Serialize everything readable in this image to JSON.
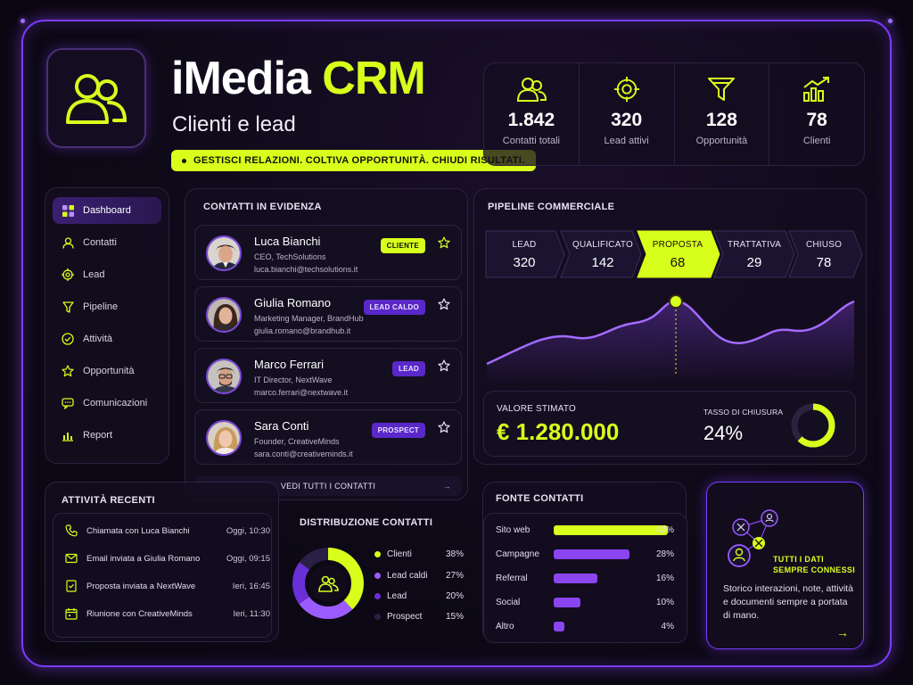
{
  "app": {
    "title_part1": "iMedia",
    "title_part2": "CRM",
    "subtitle": "Clienti e lead",
    "tagline": "GESTISCI RELAZIONI. COLTIVA OPPORTUNITÀ. CHIUDI RISULTATI."
  },
  "stats": [
    {
      "icon": "users-icon",
      "value": "1.842",
      "label": "Contatti totali"
    },
    {
      "icon": "target-icon",
      "value": "320",
      "label": "Lead attivi"
    },
    {
      "icon": "funnel-icon",
      "value": "128",
      "label": "Opportunità"
    },
    {
      "icon": "growth-chart-icon",
      "value": "78",
      "label": "Clienti"
    }
  ],
  "sidebar": {
    "items": [
      {
        "label": "Dashboard",
        "icon": "grid-icon",
        "active": true
      },
      {
        "label": "Contatti",
        "icon": "user-icon"
      },
      {
        "label": "Lead",
        "icon": "target-icon"
      },
      {
        "label": "Pipeline",
        "icon": "funnel-icon"
      },
      {
        "label": "Attività",
        "icon": "check-circle-icon"
      },
      {
        "label": "Opportunità",
        "icon": "star-icon"
      },
      {
        "label": "Comunicazioni",
        "icon": "chat-icon"
      },
      {
        "label": "Report",
        "icon": "bar-chart-icon"
      }
    ]
  },
  "contacts": {
    "title": "CONTATTI IN EVIDENZA",
    "items": [
      {
        "name": "Luca Bianchi",
        "role": "CEO, TechSolutions",
        "email": "luca.bianchi@techsolutions.it",
        "badge": "CLIENTE",
        "badge_style": "lime"
      },
      {
        "name": "Giulia Romano",
        "role": "Marketing Manager, BrandHub",
        "email": "giulia.romano@brandhub.it",
        "badge": "LEAD CALDO",
        "badge_style": "vio"
      },
      {
        "name": "Marco Ferrari",
        "role": "IT Director, NextWave",
        "email": "marco.ferrari@nextwave.it",
        "badge": "LEAD",
        "badge_style": "vio"
      },
      {
        "name": "Sara Conti",
        "role": "Founder, CreativeMinds",
        "email": "sara.conti@creativeminds.it",
        "badge": "PROSPECT",
        "badge_style": "vio"
      }
    ],
    "see_all": "VEDI TUTTI I CONTATTI"
  },
  "pipeline": {
    "title": "PIPELINE COMMERCIALE",
    "stages": [
      {
        "name": "LEAD",
        "value": "320"
      },
      {
        "name": "QUALIFICATO",
        "value": "142"
      },
      {
        "name": "PROPOSTA",
        "value": "68",
        "active": true
      },
      {
        "name": "TRATTATIVA",
        "value": "29"
      },
      {
        "name": "CHIUSO",
        "value": "78"
      }
    ],
    "estimated_label": "VALORE STIMATO",
    "estimated_value": "€ 1.280.000",
    "close_rate_label": "TASSO DI CHIUSURA",
    "close_rate_value": "24%",
    "close_rate_fraction": 0.24
  },
  "activities": {
    "title": "ATTIVITÀ RECENTI",
    "items": [
      {
        "icon": "phone-icon",
        "text": "Chiamata con Luca Bianchi",
        "time": "Oggi, 10:30"
      },
      {
        "icon": "mail-icon",
        "text": "Email inviata a Giulia Romano",
        "time": "Oggi, 09:15"
      },
      {
        "icon": "document-icon",
        "text": "Proposta inviata a NextWave",
        "time": "Ieri, 16:45"
      },
      {
        "icon": "calendar-icon",
        "text": "Riunione con CreativeMinds",
        "time": "Ieri, 11:30"
      }
    ]
  },
  "distribution": {
    "title": "DISTRIBUZIONE CONTATTI",
    "items": [
      {
        "label": "Clienti",
        "pct": "38%",
        "value": 38,
        "color": "#d8ff1c"
      },
      {
        "label": "Lead caldi",
        "pct": "27%",
        "value": 27,
        "color": "#9b5cff"
      },
      {
        "label": "Lead",
        "pct": "20%",
        "value": 20,
        "color": "#6a2fd6"
      },
      {
        "label": "Prospect",
        "pct": "15%",
        "value": 15,
        "color": "#2a1f45"
      }
    ]
  },
  "sources": {
    "title": "FONTE CONTATTI",
    "items": [
      {
        "label": "Sito web",
        "pct": "42%",
        "value": 42,
        "color": "#d8ff1c"
      },
      {
        "label": "Campagne",
        "pct": "28%",
        "value": 28,
        "color": "#8a45f0"
      },
      {
        "label": "Referral",
        "pct": "16%",
        "value": 16,
        "color": "#8a45f0"
      },
      {
        "label": "Social",
        "pct": "10%",
        "value": 10,
        "color": "#8a45f0"
      },
      {
        "label": "Altro",
        "pct": "4%",
        "value": 4,
        "color": "#8a45f0"
      }
    ]
  },
  "connected": {
    "title_line1": "TUTTI I DATI",
    "title_line2": "SEMPRE CONNESSI",
    "text": "Storico interazioni, note, attività e documenti sempre a portata di mano.",
    "arrow": "→"
  },
  "colors": {
    "accent": "#d8ff1c",
    "violet": "#8a45f0",
    "border": "#7a3cff"
  }
}
